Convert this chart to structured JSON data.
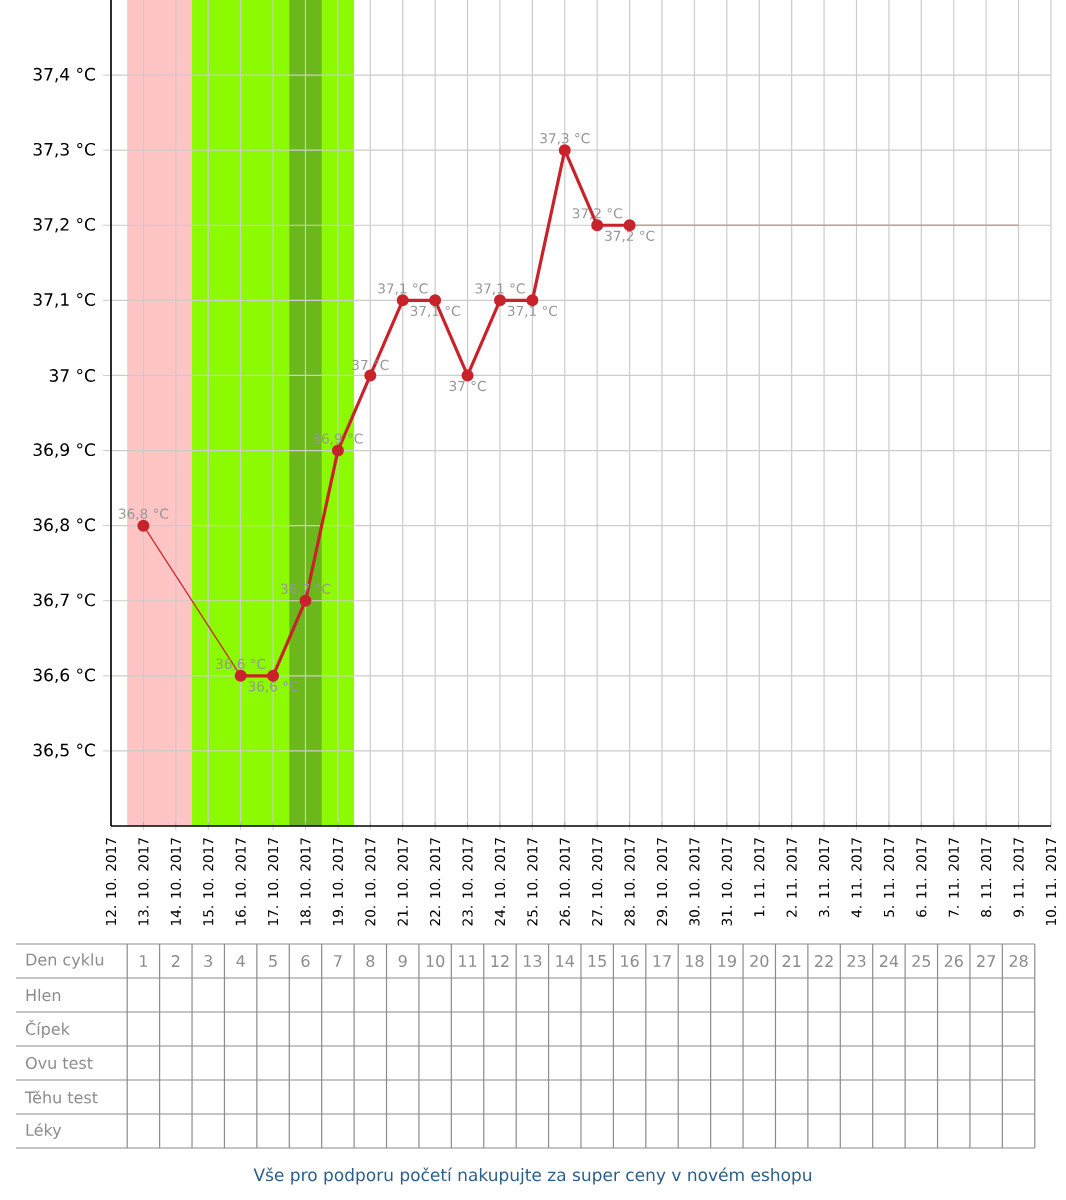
{
  "chart_data": {
    "type": "line",
    "marker": "circle",
    "grid": true,
    "xlim": [
      "2017-10-12",
      "2017-11-10"
    ],
    "ylim": [
      36.4,
      37.5
    ],
    "x": [
      "2017-10-13",
      "2017-10-14",
      "2017-10-15",
      "2017-10-16",
      "2017-10-17",
      "2017-10-18",
      "2017-10-19",
      "2017-10-20",
      "2017-10-21",
      "2017-10-22",
      "2017-10-23",
      "2017-10-24",
      "2017-10-25",
      "2017-10-26",
      "2017-10-27",
      "2017-10-28",
      "2017-10-29",
      "2017-10-30",
      "2017-10-31",
      "2017-11-01",
      "2017-11-02",
      "2017-11-03",
      "2017-11-04",
      "2017-11-05",
      "2017-11-06",
      "2017-11-07",
      "2017-11-08",
      "2017-11-09"
    ],
    "series": [
      {
        "color": "#c8232a",
        "values": [
          36.8,
          null,
          null,
          36.6,
          36.6,
          36.7,
          36.9,
          37.0,
          37.1,
          37.1,
          37.0,
          37.1,
          37.1,
          37.3,
          37.2,
          37.2,
          null,
          null,
          null,
          null,
          null,
          null,
          null,
          null,
          null,
          null,
          null,
          null
        ],
        "value_labels": [
          "36,8 °C",
          null,
          null,
          "36,6 °C",
          "36,6 °C",
          "36,7 °C",
          "36,9 °C",
          "37 °C",
          "37,1 °C",
          "37,1 °C",
          "37 °C",
          "37,1 °C",
          "37,1 °C",
          "37,3 °C",
          "37,2 °C",
          "37,2 °C",
          null,
          null,
          null,
          null,
          null,
          null,
          null,
          null,
          null,
          null,
          null,
          null
        ]
      },
      {
        "color": "#c89a9a",
        "marker": "none",
        "values": [
          null,
          null,
          null,
          null,
          null,
          null,
          null,
          null,
          null,
          null,
          null,
          null,
          null,
          null,
          null,
          37.2,
          37.2,
          37.2,
          37.2,
          37.2,
          37.2,
          37.2,
          37.2,
          37.2,
          37.2,
          37.2,
          37.2,
          37.2
        ]
      }
    ],
    "yticks": [
      {
        "value": 36.5,
        "label": "36,5 °C"
      },
      {
        "value": 36.6,
        "label": "36,6 °C"
      },
      {
        "value": 36.7,
        "label": "36,7 °C"
      },
      {
        "value": 36.8,
        "label": "36,8 °C"
      },
      {
        "value": 36.9,
        "label": "36,9 °C"
      },
      {
        "value": 37.0,
        "label": "37 °C"
      },
      {
        "value": 37.1,
        "label": "37,1 °C"
      },
      {
        "value": 37.2,
        "label": "37,2 °C"
      },
      {
        "value": 37.3,
        "label": "37,3 °C"
      },
      {
        "value": 37.4,
        "label": "37,4 °C"
      }
    ],
    "xticks": [
      {
        "value": "2017-10-12",
        "label": "12. 10. 2017"
      },
      {
        "value": "2017-10-13",
        "label": "13. 10. 2017"
      },
      {
        "value": "2017-10-14",
        "label": "14. 10. 2017"
      },
      {
        "value": "2017-10-15",
        "label": "15. 10. 2017"
      },
      {
        "value": "2017-10-16",
        "label": "16. 10. 2017"
      },
      {
        "value": "2017-10-17",
        "label": "17. 10. 2017"
      },
      {
        "value": "2017-10-18",
        "label": "18. 10. 2017"
      },
      {
        "value": "2017-10-19",
        "label": "19. 10. 2017"
      },
      {
        "value": "2017-10-20",
        "label": "20. 10. 2017"
      },
      {
        "value": "2017-10-21",
        "label": "21. 10. 2017"
      },
      {
        "value": "2017-10-22",
        "label": "22. 10. 2017"
      },
      {
        "value": "2017-10-23",
        "label": "23. 10. 2017"
      },
      {
        "value": "2017-10-24",
        "label": "24. 10. 2017"
      },
      {
        "value": "2017-10-25",
        "label": "25. 10. 2017"
      },
      {
        "value": "2017-10-26",
        "label": "26. 10. 2017"
      },
      {
        "value": "2017-10-27",
        "label": "27. 10. 2017"
      },
      {
        "value": "2017-10-28",
        "label": "28. 10. 2017"
      },
      {
        "value": "2017-10-29",
        "label": "29. 10. 2017"
      },
      {
        "value": "2017-10-30",
        "label": "30. 10. 2017"
      },
      {
        "value": "2017-10-31",
        "label": "31. 10. 2017"
      },
      {
        "value": "2017-11-01",
        "label": "1. 11. 2017"
      },
      {
        "value": "2017-11-02",
        "label": "2. 11. 2017"
      },
      {
        "value": "2017-11-03",
        "label": "3. 11. 2017"
      },
      {
        "value": "2017-11-04",
        "label": "4. 11. 2017"
      },
      {
        "value": "2017-11-05",
        "label": "5. 11. 2017"
      },
      {
        "value": "2017-11-06",
        "label": "6. 11. 2017"
      },
      {
        "value": "2017-11-07",
        "label": "7. 11. 2017"
      },
      {
        "value": "2017-11-08",
        "label": "8. 11. 2017"
      },
      {
        "value": "2017-11-09",
        "label": "9. 11. 2017"
      },
      {
        "value": "2017-11-10",
        "label": "10. 11. 2017"
      }
    ],
    "bands": [
      {
        "axis": "x",
        "from": "2017-10-12T12:00",
        "to": "2017-10-14T12:00",
        "color": "#ffc4c4"
      },
      {
        "axis": "x",
        "from": "2017-10-14T12:00",
        "to": "2017-10-19T12:00",
        "color": "#8cfa00"
      },
      {
        "axis": "x",
        "from": "2017-10-17T12:00",
        "to": "2017-10-18T12:00",
        "color": "#6cb81c"
      }
    ],
    "annotations": [
      "Den cyklu",
      "Hlen",
      "Čípek",
      "Ovu test",
      "Těhu test",
      "Léky",
      "1",
      "2",
      "3",
      "4",
      "5",
      "6",
      "7",
      "8",
      "9",
      "10",
      "11",
      "12",
      "13",
      "14",
      "15",
      "16",
      "17",
      "18",
      "19",
      "20",
      "21",
      "22",
      "23",
      "24",
      "25",
      "26",
      "27",
      "28",
      "Vše pro podporu početí nakupujte za super ceny v novém eshopu"
    ]
  }
}
